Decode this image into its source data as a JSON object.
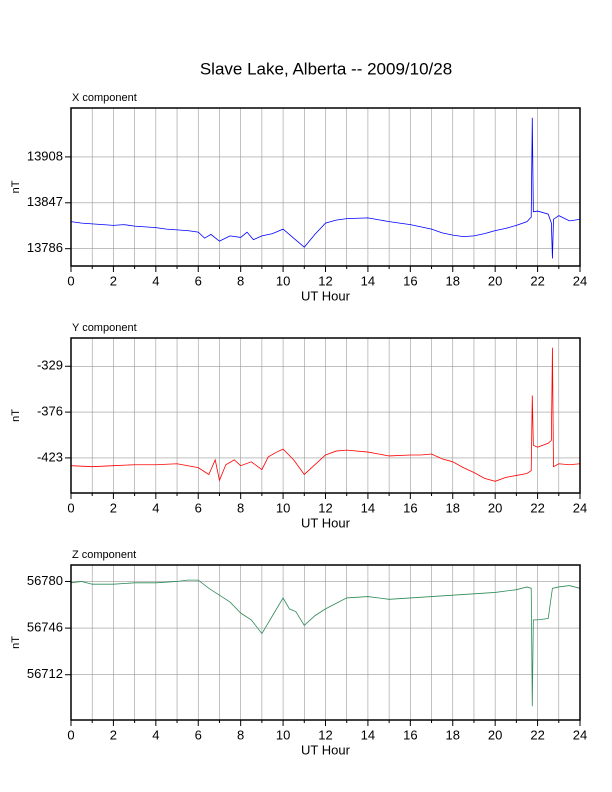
{
  "title": "Slave Lake, Alberta -- 2009/10/28",
  "chart_data": [
    {
      "type": "line",
      "title": "X component",
      "xlabel": "UT Hour",
      "ylabel": "nT",
      "color": "#0000ff",
      "grid": true,
      "xlim": [
        0,
        24
      ],
      "xticks": [
        0,
        2,
        4,
        6,
        8,
        10,
        12,
        14,
        16,
        18,
        20,
        22,
        24
      ],
      "xminorticks": [
        1,
        3,
        5,
        7,
        9,
        11,
        13,
        15,
        17,
        19,
        21,
        23
      ],
      "ylim": [
        13763,
        13973
      ],
      "yticks": [
        13786,
        13847,
        13908
      ],
      "x": [
        0,
        0.5,
        1,
        1.5,
        2,
        2.5,
        3,
        3.5,
        4,
        4.5,
        5,
        5.5,
        6,
        6.3,
        6.6,
        7,
        7.5,
        8,
        8.3,
        8.6,
        9,
        9.5,
        10,
        10.5,
        11,
        11.5,
        12,
        12.5,
        13,
        14,
        15,
        16,
        17,
        17.5,
        18,
        18.5,
        19,
        19.5,
        20,
        20.5,
        21,
        21.5,
        21.7,
        21.75,
        21.8,
        22,
        22.5,
        22.65,
        22.7,
        22.75,
        23,
        23.5,
        24
      ],
      "values": [
        13822,
        13820,
        13819,
        13818,
        13817,
        13818,
        13816,
        13815,
        13814,
        13812,
        13811,
        13810,
        13808,
        13800,
        13805,
        13796,
        13803,
        13801,
        13808,
        13798,
        13803,
        13806,
        13812,
        13800,
        13788,
        13805,
        13820,
        13824,
        13826,
        13827,
        13822,
        13818,
        13812,
        13807,
        13804,
        13802,
        13803,
        13806,
        13810,
        13813,
        13817,
        13822,
        13828,
        13960,
        13835,
        13836,
        13832,
        13820,
        13773,
        13825,
        13830,
        13823,
        13825
      ]
    },
    {
      "type": "line",
      "title": "Y component",
      "xlabel": "UT Hour",
      "ylabel": "nT",
      "color": "#ff0000",
      "grid": true,
      "xlim": [
        0,
        24
      ],
      "xticks": [
        0,
        2,
        4,
        6,
        8,
        10,
        12,
        14,
        16,
        18,
        20,
        22,
        24
      ],
      "xminorticks": [
        1,
        3,
        5,
        7,
        9,
        11,
        13,
        15,
        17,
        19,
        21,
        23
      ],
      "ylim": [
        -459,
        -300
      ],
      "yticks": [
        -423,
        -376,
        -329
      ],
      "x": [
        0,
        1,
        2,
        3,
        4,
        5,
        6,
        6.5,
        6.8,
        7,
        7.3,
        7.7,
        8,
        8.5,
        9,
        9.3,
        9.7,
        10,
        10.5,
        11,
        11.5,
        12,
        12.5,
        13,
        14,
        15,
        16,
        16.5,
        17,
        17.5,
        18,
        18.5,
        19,
        19.5,
        20,
        20.5,
        21,
        21.5,
        21.7,
        21.75,
        21.8,
        22,
        22.5,
        22.65,
        22.7,
        22.75,
        23,
        23.5,
        24
      ],
      "values": [
        -431,
        -432,
        -431,
        -430,
        -430,
        -429,
        -433,
        -440,
        -425,
        -446,
        -430,
        -425,
        -431,
        -427,
        -435,
        -422,
        -417,
        -414,
        -425,
        -440,
        -430,
        -420,
        -416,
        -415,
        -417,
        -421,
        -420,
        -420,
        -419,
        -424,
        -427,
        -433,
        -438,
        -444,
        -447,
        -443,
        -441,
        -439,
        -436,
        -359,
        -410,
        -412,
        -408,
        -405,
        -310,
        -432,
        -429,
        -430,
        -429
      ]
    },
    {
      "type": "line",
      "title": "Z component",
      "xlabel": "UT Hour",
      "ylabel": "nT",
      "color": "#2e8b57",
      "grid": true,
      "xlim": [
        0,
        24
      ],
      "xticks": [
        0,
        2,
        4,
        6,
        8,
        10,
        12,
        14,
        16,
        18,
        20,
        22,
        24
      ],
      "xminorticks": [
        1,
        3,
        5,
        7,
        9,
        11,
        13,
        15,
        17,
        19,
        21,
        23
      ],
      "ylim": [
        56679,
        56792
      ],
      "yticks": [
        56712,
        56746,
        56780
      ],
      "x": [
        0,
        0.5,
        1,
        2,
        3,
        4,
        5,
        5.5,
        6,
        6.5,
        7,
        7.5,
        8,
        8.5,
        9,
        9.5,
        10,
        10.3,
        10.6,
        11,
        11.5,
        12,
        13,
        14,
        15,
        16,
        17,
        18,
        19,
        20,
        21,
        21.5,
        21.7,
        21.75,
        21.8,
        22,
        22.5,
        22.7,
        23,
        23.5,
        24
      ],
      "values": [
        56779,
        56780,
        56778,
        56778,
        56779,
        56779,
        56780,
        56781,
        56781,
        56775,
        56770,
        56765,
        56757,
        56752,
        56742,
        56755,
        56768,
        56760,
        56758,
        56748,
        56755,
        56760,
        56768,
        56769,
        56767,
        56768,
        56769,
        56770,
        56771,
        56772,
        56774,
        56776,
        56775,
        56689,
        56752,
        56752,
        56753,
        56775,
        56776,
        56777,
        56775
      ]
    }
  ]
}
